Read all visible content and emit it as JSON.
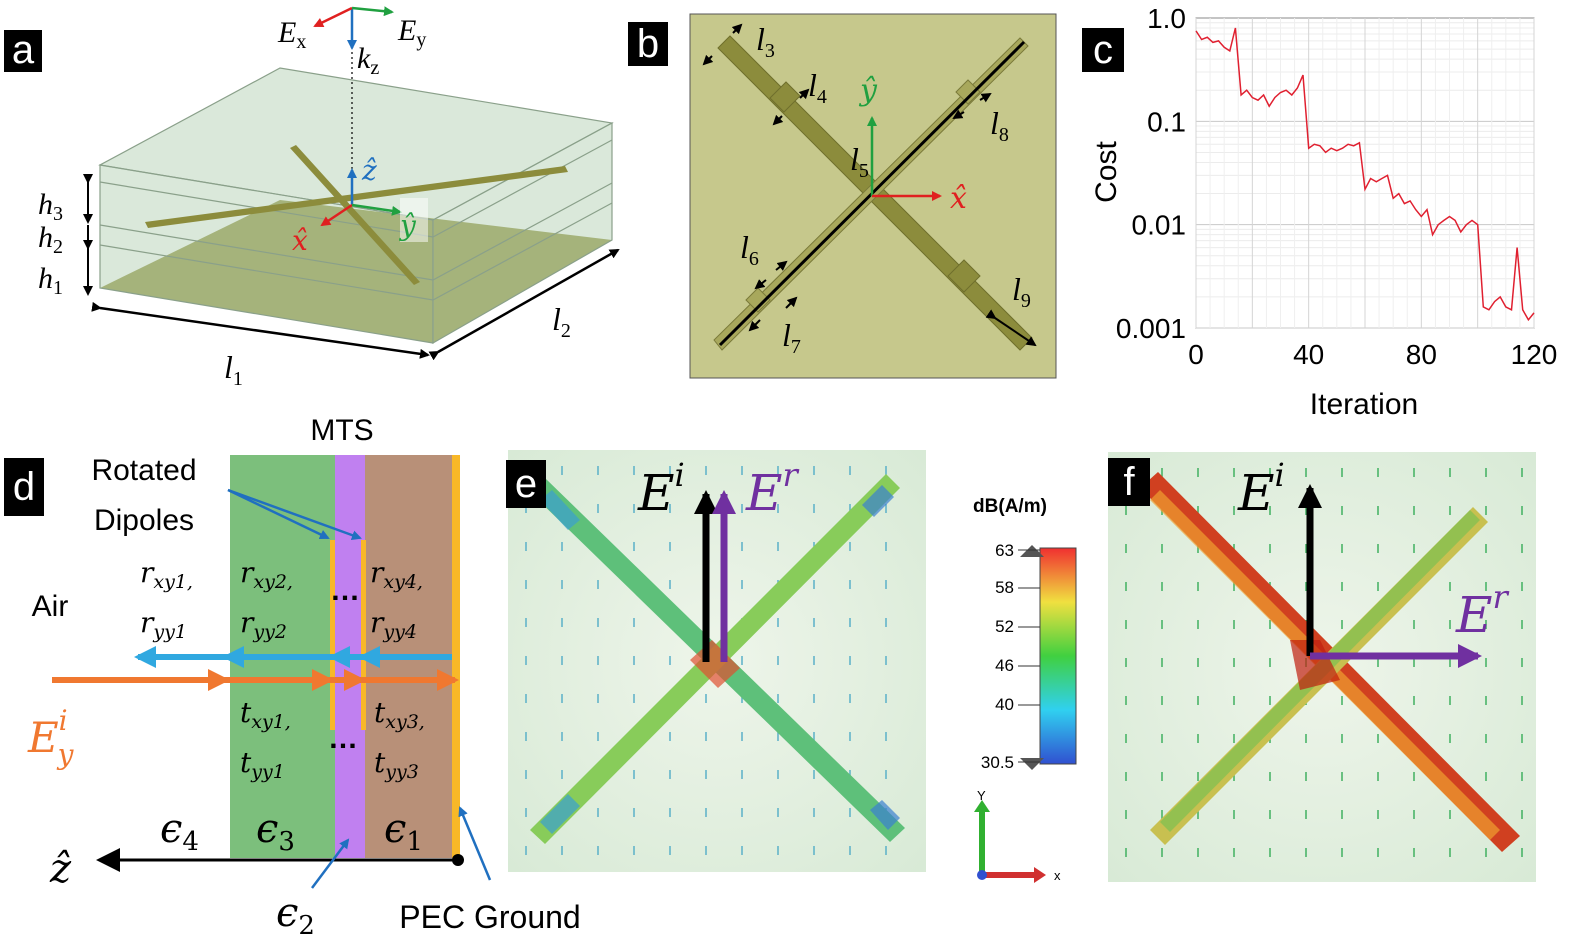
{
  "panels": {
    "a": "a",
    "b": "b",
    "c": "c",
    "d": "d",
    "e": "e",
    "f": "f"
  },
  "colors": {
    "ground": "#8a8a2e",
    "substrate": "#c8dcc8",
    "dipole": "#8c8c3c",
    "red": "#e02020",
    "green": "#20a040",
    "blue": "#2070c0",
    "orange": "#f07830",
    "skyblue": "#30a8e0",
    "purple": "#7030a0",
    "eps3": "#7cbf7c",
    "eps2": "#c080f0",
    "eps1": "#b89078",
    "pec": "#f8b828"
  },
  "panel_a": {
    "Ex": "E",
    "Ex_sub": "x",
    "Ey": "E",
    "Ey_sub": "y",
    "kz": "k",
    "kz_sub": "z",
    "zhat": "ẑ",
    "xhat": "x̂",
    "yhat": "ŷ",
    "h3": "h",
    "h3_sub": "3",
    "h2": "h",
    "h2_sub": "2",
    "h1": "h",
    "h1_sub": "1",
    "l1": "l",
    "l1_sub": "1",
    "l2": "l",
    "l2_sub": "2"
  },
  "panel_b": {
    "l3": "l",
    "l3_sub": "3",
    "l4": "l",
    "l4_sub": "4",
    "l5": "l",
    "l5_sub": "5",
    "l6": "l",
    "l6_sub": "6",
    "l7": "l",
    "l7_sub": "7",
    "l8": "l",
    "l8_sub": "8",
    "l9": "l",
    "l9_sub": "9",
    "xhat": "x̂",
    "yhat": "ŷ"
  },
  "chart_data": {
    "type": "line",
    "title": "",
    "xlabel": "Iteration",
    "ylabel": "Cost",
    "yscale": "log",
    "xlim": [
      0,
      120
    ],
    "ylim": [
      0.001,
      1.0
    ],
    "xticks": [
      "0",
      "40",
      "80",
      "120"
    ],
    "yticks": [
      "1.0",
      "0.1",
      "0.01",
      "0.001"
    ],
    "grid": true,
    "series": [
      {
        "name": "cost",
        "color": "#e02030",
        "x": [
          0,
          2,
          4,
          6,
          8,
          10,
          12,
          14,
          16,
          18,
          20,
          22,
          24,
          26,
          28,
          30,
          32,
          34,
          36,
          38,
          40,
          42,
          44,
          46,
          48,
          50,
          52,
          54,
          56,
          58,
          60,
          62,
          64,
          66,
          68,
          70,
          72,
          74,
          76,
          78,
          80,
          82,
          84,
          86,
          88,
          90,
          92,
          94,
          96,
          98,
          100,
          102,
          104,
          106,
          108,
          110,
          112,
          114,
          116,
          118,
          120
        ],
        "values": [
          0.75,
          0.62,
          0.65,
          0.58,
          0.6,
          0.52,
          0.48,
          0.8,
          0.18,
          0.2,
          0.17,
          0.16,
          0.18,
          0.14,
          0.17,
          0.19,
          0.2,
          0.18,
          0.21,
          0.28,
          0.055,
          0.06,
          0.058,
          0.05,
          0.055,
          0.052,
          0.055,
          0.06,
          0.058,
          0.062,
          0.022,
          0.028,
          0.026,
          0.028,
          0.03,
          0.018,
          0.02,
          0.016,
          0.017,
          0.014,
          0.012,
          0.014,
          0.008,
          0.01,
          0.011,
          0.012,
          0.011,
          0.0085,
          0.01,
          0.011,
          0.01,
          0.0016,
          0.0015,
          0.0018,
          0.002,
          0.0016,
          0.0015,
          0.006,
          0.0015,
          0.0012,
          0.0014
        ]
      }
    ]
  },
  "panel_d": {
    "mts": "MTS",
    "rotated": "Rotated",
    "dipoles": "Dipoles",
    "air": "Air",
    "r_xy1": "r",
    "r_xy1_sub": "xy1,",
    "r_yy1": "r",
    "r_yy1_sub": "yy1",
    "r_xy2": "r",
    "r_xy2_sub": "xy2,",
    "r_yy2": "r",
    "r_yy2_sub": "yy2",
    "r_xy4": "r",
    "r_xy4_sub": "xy4,",
    "r_yy4": "r",
    "r_yy4_sub": "yy4",
    "t_xy1": "t",
    "t_xy1_sub": "xy1,",
    "t_yy1": "t",
    "t_yy1_sub": "yy1",
    "t_xy3": "t",
    "t_xy3_sub": "xy3,",
    "t_yy3": "t",
    "t_yy3_sub": "yy3",
    "dots": "…",
    "Ei": "E",
    "Ei_sup": "i",
    "Ei_sub": "y",
    "eps4": "ϵ",
    "eps4_sub": "4",
    "eps3": "ϵ",
    "eps3_sub": "3",
    "eps1": "ϵ",
    "eps1_sub": "1",
    "eps2": "ϵ",
    "eps2_sub": "2",
    "zhat": "ẑ",
    "pec": "PEC Ground"
  },
  "panel_e": {
    "Ei": "E",
    "Ei_sup": "i",
    "Er": "E",
    "Er_sup": "r"
  },
  "colorbar": {
    "unit": "dB(A/m)",
    "ticks": [
      "63",
      "58",
      "52",
      "46",
      "40",
      "30.5"
    ],
    "axis_y": "Y",
    "axis_x": "x"
  },
  "panel_f": {
    "Ei": "E",
    "Ei_sup": "i",
    "Er": "E",
    "Er_sup": "r"
  }
}
